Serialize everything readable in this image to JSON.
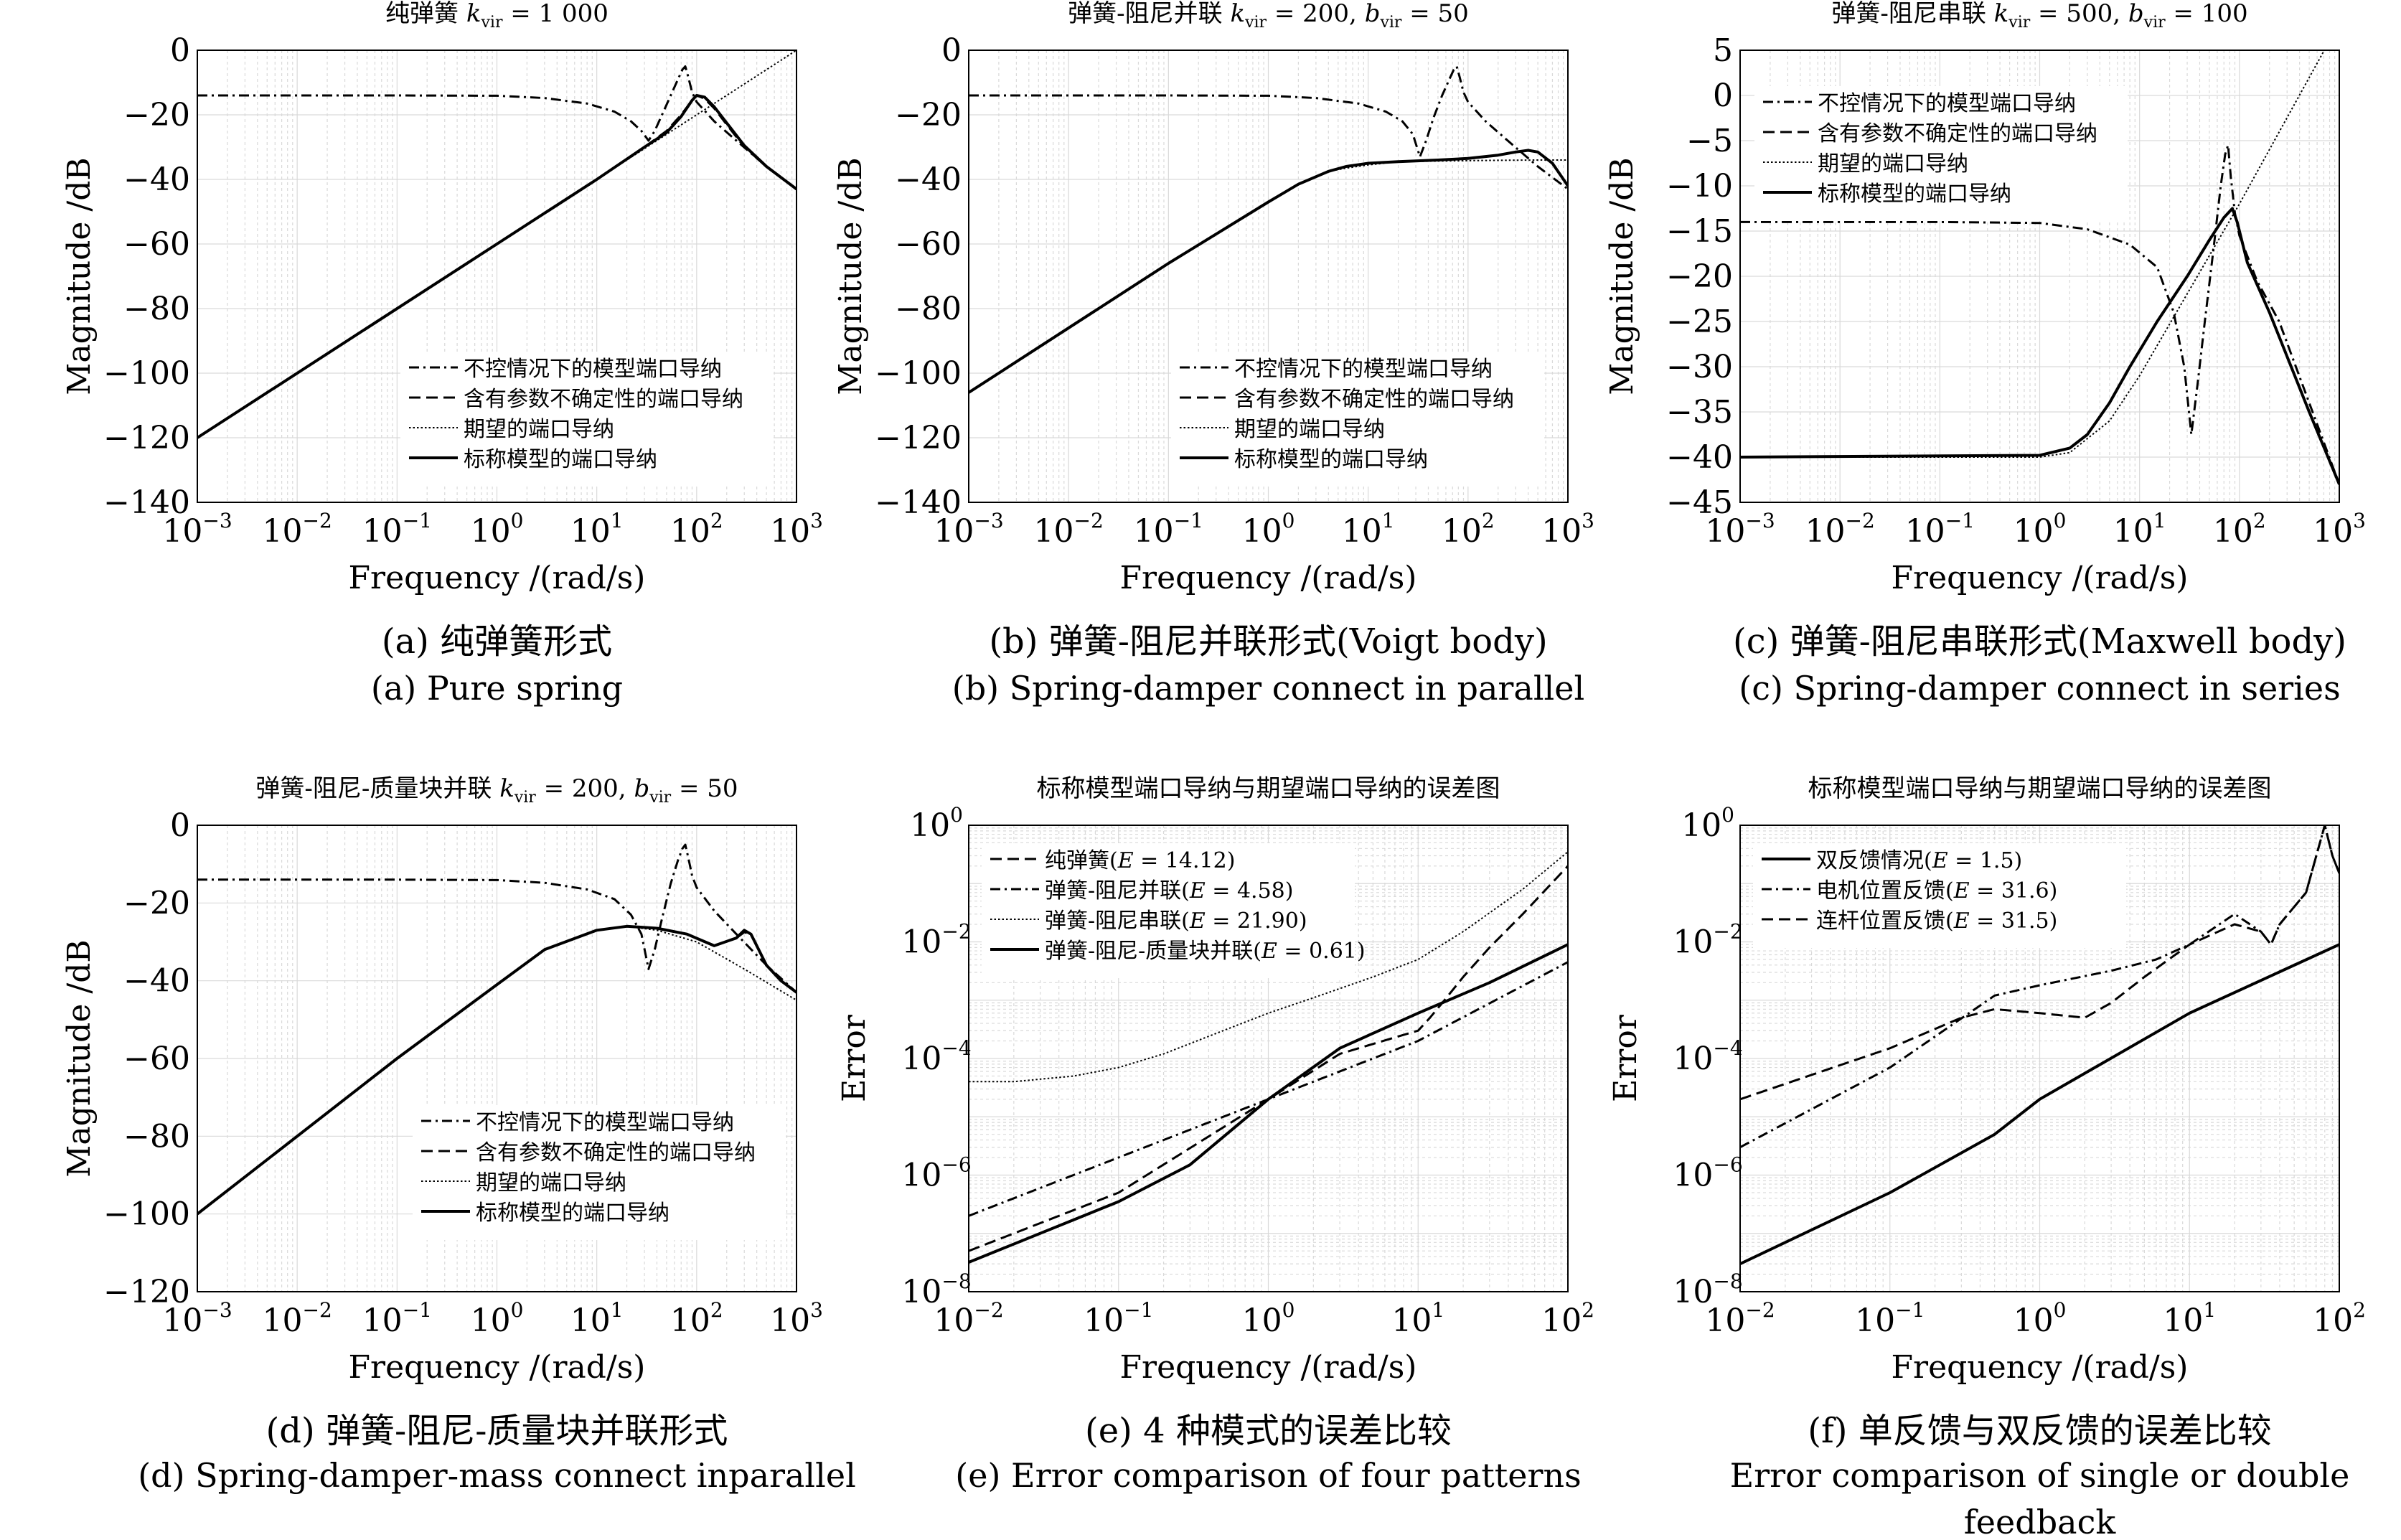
{
  "legend_labels": {
    "uncontrolled": "不控情况下的模型端口导纳",
    "uncertain": "含有参数不确定性的端口导纳",
    "desired": "期望的端口导纳",
    "nominal": "标称模型的端口导纳"
  },
  "style": {
    "line_color": "#000000",
    "grid_color": "#d9d9d9",
    "background": "#ffffff"
  },
  "chart_data": [
    {
      "id": "a",
      "type": "line",
      "title": "纯弹簧 k_vir = 1 000",
      "title_parts": [
        "纯弹簧 ",
        "k",
        "vir",
        " = 1 000"
      ],
      "xlabel": "Frequency /(rad/s)",
      "ylabel": "Magnitude /dB",
      "xscale": "log",
      "xlim": [
        0.001,
        1000
      ],
      "ylim": [
        -140,
        0
      ],
      "yticks": [
        0,
        -20,
        -40,
        -60,
        -80,
        -100,
        -120,
        -140
      ],
      "xticks": [
        -3,
        -2,
        -1,
        0,
        1,
        2,
        3
      ],
      "grid": true,
      "legend_placement": "lower-right",
      "caption_cn": "(a) 纯弹簧形式",
      "caption_en": "(a) Pure spring",
      "series": [
        {
          "name": "不控情况下的模型端口导纳",
          "style": "dashdot",
          "x": [
            0.001,
            0.1,
            1,
            3,
            8,
            15,
            22,
            28,
            33,
            38,
            45,
            55,
            65,
            72,
            77,
            82,
            90,
            100,
            150,
            250,
            500,
            1000
          ],
          "y": [
            -14,
            -14,
            -14.1,
            -14.8,
            -16.5,
            -19,
            -22,
            -25,
            -28,
            -25,
            -20,
            -14,
            -9,
            -6,
            -5,
            -8,
            -13,
            -16,
            -22,
            -28,
            -36,
            -43
          ]
        },
        {
          "name": "含有参数不确定性的端口导纳",
          "style": "dashed",
          "x": [
            0.001,
            1,
            10,
            30,
            50,
            70,
            90,
            100,
            120,
            150,
            200,
            300,
            500,
            1000
          ],
          "y": [
            -120,
            -60,
            -40,
            -30,
            -25,
            -20,
            -15.5,
            -14,
            -15,
            -18,
            -23,
            -30,
            -36,
            -43
          ]
        },
        {
          "name": "期望的端口导纳",
          "style": "dotted",
          "x": [
            0.001,
            1000
          ],
          "y": [
            -120,
            0
          ]
        },
        {
          "name": "标称模型的端口导纳",
          "style": "solid",
          "x": [
            0.001,
            1,
            10,
            30,
            50,
            70,
            90,
            100,
            120,
            150,
            200,
            300,
            500,
            1000
          ],
          "y": [
            -120,
            -60,
            -40,
            -30,
            -25.5,
            -20.5,
            -15.5,
            -14,
            -14.5,
            -17.5,
            -22.5,
            -29.5,
            -36,
            -43
          ]
        }
      ]
    },
    {
      "id": "b",
      "type": "line",
      "title": "弹簧-阻尼并联 k_vir = 200, b_vir = 50",
      "title_parts": [
        "弹簧-阻尼并联 ",
        "k",
        "vir",
        " = 200, ",
        "b",
        "vir",
        " = 50"
      ],
      "xlabel": "Frequency /(rad/s)",
      "ylabel": "Magnitude /dB",
      "xscale": "log",
      "xlim": [
        0.001,
        1000
      ],
      "ylim": [
        -140,
        0
      ],
      "yticks": [
        0,
        -20,
        -40,
        -60,
        -80,
        -100,
        -120,
        -140
      ],
      "xticks": [
        -3,
        -2,
        -1,
        0,
        1,
        2,
        3
      ],
      "grid": true,
      "legend_placement": "lower-right",
      "caption_cn": "(b) 弹簧-阻尼并联形式(Voigt body)",
      "caption_en": "(b) Spring-damper connect in parallel",
      "series": [
        {
          "name": "不控情况下的模型端口导纳",
          "style": "dashdot",
          "x": [
            0.001,
            0.1,
            1,
            3,
            8,
            15,
            22,
            28,
            33,
            38,
            45,
            55,
            65,
            72,
            77,
            82,
            90,
            100,
            150,
            250,
            500,
            1000
          ],
          "y": [
            -14,
            -14,
            -14.1,
            -14.8,
            -16.5,
            -19,
            -22,
            -26,
            -33,
            -28,
            -21,
            -14,
            -9,
            -6,
            -5,
            -8,
            -13,
            -16,
            -22,
            -28,
            -36,
            -43
          ]
        },
        {
          "name": "含有参数不确定性的端口导纳",
          "style": "dashed",
          "x": [
            0.001,
            0.1,
            1,
            2,
            4,
            6,
            10,
            20,
            50,
            100,
            200,
            300,
            400,
            500,
            700,
            1000
          ],
          "y": [
            -106,
            -66,
            -47,
            -41.5,
            -37.5,
            -36,
            -35,
            -34.5,
            -34,
            -33.5,
            -32.5,
            -31.5,
            -31,
            -31.5,
            -35,
            -42
          ]
        },
        {
          "name": "期望的端口导纳",
          "style": "dotted",
          "x": [
            0.001,
            0.1,
            1,
            2,
            4,
            6,
            10,
            20,
            50,
            100,
            200,
            500,
            1000
          ],
          "y": [
            -106,
            -66,
            -47,
            -41.5,
            -37.5,
            -36.5,
            -35.5,
            -34.5,
            -34.3,
            -34.2,
            -34.1,
            -34,
            -34
          ]
        },
        {
          "name": "标称模型的端口导纳",
          "style": "solid",
          "x": [
            0.001,
            0.1,
            1,
            2,
            4,
            6,
            10,
            20,
            50,
            100,
            200,
            300,
            400,
            500,
            700,
            1000
          ],
          "y": [
            -106,
            -66,
            -47,
            -41.5,
            -37.5,
            -36,
            -35,
            -34.5,
            -34,
            -33.5,
            -32.5,
            -31.5,
            -31,
            -31.5,
            -35,
            -42
          ]
        }
      ]
    },
    {
      "id": "c",
      "type": "line",
      "title": "弹簧-阻尼串联 k_vir = 500, b_vir = 100",
      "title_parts": [
        "弹簧-阻尼串联 ",
        "k",
        "vir",
        " = 500, ",
        "b",
        "vir",
        " = 100"
      ],
      "xlabel": "Frequency /(rad/s)",
      "ylabel": "Magnitude /dB",
      "xscale": "log",
      "xlim": [
        0.001,
        1000
      ],
      "ylim": [
        -45,
        5
      ],
      "yticks": [
        5,
        0,
        -5,
        -10,
        -15,
        -20,
        -25,
        -30,
        -35,
        -40,
        -45
      ],
      "xticks": [
        -3,
        -2,
        -1,
        0,
        1,
        2,
        3
      ],
      "grid": true,
      "legend_placement": "upper-left",
      "caption_cn": "(c) 弹簧-阻尼串联形式(Maxwell body)",
      "caption_en": "(c) Spring-damper connect in series",
      "series": [
        {
          "name": "不控情况下的模型端口导纳",
          "style": "dashdot",
          "x": [
            0.001,
            0.1,
            1,
            3,
            8,
            15,
            22,
            28,
            33,
            38,
            45,
            55,
            65,
            72,
            77,
            82,
            90,
            100,
            150,
            250,
            500,
            1000
          ],
          "y": [
            -14,
            -14,
            -14.1,
            -14.8,
            -16.5,
            -19,
            -24,
            -30,
            -37.5,
            -32,
            -25,
            -17,
            -10,
            -6.5,
            -5.5,
            -9,
            -13,
            -15.5,
            -20.5,
            -25,
            -34,
            -43
          ]
        },
        {
          "name": "含有参数不确定性的端口导纳",
          "style": "dashed",
          "x": [
            0.001,
            1,
            2,
            3,
            5,
            8,
            15,
            30,
            50,
            70,
            85,
            95,
            120,
            200,
            500,
            1000
          ],
          "y": [
            -40,
            -39.8,
            -39,
            -37.5,
            -34,
            -30,
            -25,
            -20,
            -16,
            -13.5,
            -12.5,
            -14,
            -18.5,
            -24,
            -35,
            -43
          ]
        },
        {
          "name": "期望的端口导纳",
          "style": "dotted",
          "x": [
            0.001,
            1,
            2,
            5,
            10,
            100,
            1000
          ],
          "y": [
            -40,
            -40,
            -39.5,
            -36,
            -31,
            -12,
            8
          ]
        },
        {
          "name": "标称模型的端口导纳",
          "style": "solid",
          "x": [
            0.001,
            1,
            2,
            3,
            5,
            8,
            15,
            30,
            50,
            70,
            85,
            95,
            120,
            200,
            500,
            1000
          ],
          "y": [
            -40,
            -39.8,
            -39,
            -37.5,
            -34,
            -30,
            -25,
            -20,
            -16,
            -13.5,
            -12.5,
            -14,
            -18.5,
            -24,
            -35,
            -43
          ]
        }
      ]
    },
    {
      "id": "d",
      "type": "line",
      "title": "弹簧-阻尼-质量块并联 k_vir = 200, b_vir = 50",
      "title_parts": [
        "弹簧-阻尼-质量块并联 ",
        "k",
        "vir",
        " = 200, ",
        "b",
        "vir",
        " = 50"
      ],
      "xlabel": "Frequency /(rad/s)",
      "ylabel": "Magnitude /dB",
      "xscale": "log",
      "xlim": [
        0.001,
        1000
      ],
      "ylim": [
        -120,
        0
      ],
      "yticks": [
        0,
        -20,
        -40,
        -60,
        -80,
        -100,
        -120
      ],
      "xticks": [
        -3,
        -2,
        -1,
        0,
        1,
        2,
        3
      ],
      "grid": true,
      "legend_placement": "lower-right",
      "caption_cn": "(d) 弹簧-阻尼-质量块并联形式",
      "caption_en": "(d) Spring-damper-mass connect inparallel",
      "series": [
        {
          "name": "不控情况下的模型端口导纳",
          "style": "dashdot",
          "x": [
            0.001,
            0.1,
            1,
            3,
            8,
            15,
            22,
            28,
            33,
            38,
            45,
            55,
            65,
            72,
            77,
            82,
            90,
            100,
            150,
            250,
            500,
            1000
          ],
          "y": [
            -14,
            -14,
            -14.1,
            -14.8,
            -16.5,
            -19,
            -23,
            -28,
            -37,
            -32,
            -24,
            -15,
            -9,
            -6,
            -5,
            -8,
            -13,
            -16,
            -22,
            -28,
            -36,
            -43
          ]
        },
        {
          "name": "含有参数不确定性的端口导纳",
          "style": "dashed",
          "x": [
            0.001,
            0.1,
            1,
            3,
            10,
            20,
            40,
            80,
            150,
            250,
            300,
            350,
            400,
            500,
            700,
            1000
          ],
          "y": [
            -100,
            -60,
            -41,
            -32,
            -27,
            -26,
            -26.5,
            -28,
            -31,
            -29,
            -27.5,
            -28,
            -31,
            -36,
            -40,
            -43
          ]
        },
        {
          "name": "期望的端口导纳",
          "style": "dotted",
          "x": [
            0.001,
            0.1,
            1,
            3,
            10,
            20,
            40,
            100,
            300,
            1000
          ],
          "y": [
            -100,
            -60,
            -41,
            -32,
            -27,
            -26,
            -27,
            -30,
            -37,
            -45
          ]
        },
        {
          "name": "标称模型的端口导纳",
          "style": "solid",
          "x": [
            0.001,
            0.1,
            1,
            3,
            10,
            20,
            40,
            80,
            150,
            250,
            300,
            350,
            400,
            500,
            700,
            1000
          ],
          "y": [
            -100,
            -60,
            -41,
            -32,
            -27,
            -26,
            -26.5,
            -28,
            -31,
            -29,
            -27,
            -28,
            -31,
            -36,
            -40,
            -43
          ]
        }
      ]
    },
    {
      "id": "e",
      "type": "line",
      "title": "标称模型端口导纳与期望端口导纳的误差图",
      "title_parts": [
        "标称模型端口导纳与期望端口导纳的误差图"
      ],
      "xlabel": "Frequency /(rad/s)",
      "ylabel": "Error",
      "xscale": "log",
      "yscale": "log",
      "xlim": [
        0.01,
        100
      ],
      "ylim": [
        1e-08,
        1
      ],
      "xticks": [
        -2,
        -1,
        0,
        1,
        2
      ],
      "yticks": [
        -8,
        -6,
        -4,
        -2,
        0
      ],
      "grid": true,
      "legend_placement": "upper-left",
      "caption_cn": "(e) 4 种模式的误差比较",
      "caption_en": "(e) Error comparison of four patterns",
      "series": [
        {
          "name": "纯弹簧(E = 14.12)",
          "label_base": "纯弹簧",
          "E": "14.12",
          "style": "dashed",
          "x": [
            0.01,
            0.1,
            1,
            3,
            7,
            10,
            12,
            15,
            20,
            30,
            50,
            100
          ],
          "y": [
            5e-08,
            5e-07,
            2e-05,
            0.00012,
            0.00023,
            0.0003,
            0.0005,
            0.001,
            0.0025,
            0.008,
            0.03,
            0.2
          ]
        },
        {
          "name": "弹簧-阻尼并联(E = 4.58)",
          "label_base": "弹簧-阻尼并联",
          "E": "4.58",
          "style": "dashdot",
          "x": [
            0.01,
            0.1,
            1,
            10,
            100
          ],
          "y": [
            2e-07,
            2e-06,
            2e-05,
            0.0002,
            0.0045
          ]
        },
        {
          "name": "弹簧-阻尼串联(E = 21.90)",
          "label_base": "弹簧-阻尼串联",
          "E": "21.90",
          "style": "dotted",
          "x": [
            0.01,
            0.02,
            0.05,
            0.1,
            0.2,
            0.5,
            1,
            2,
            5,
            10,
            20,
            50,
            100
          ],
          "y": [
            4e-05,
            4e-05,
            5e-05,
            7e-05,
            0.00012,
            0.0003,
            0.0006,
            0.0011,
            0.0025,
            0.005,
            0.015,
            0.08,
            0.35
          ]
        },
        {
          "name": "弹簧-阻尼-质量块并联(E = 0.61)",
          "label_base": "弹簧-阻尼-质量块并联",
          "E": "0.61",
          "style": "solid",
          "x": [
            0.01,
            0.1,
            0.3,
            1,
            3,
            10,
            30,
            100
          ],
          "y": [
            3.2e-08,
            3.5e-07,
            1.5e-06,
            2e-05,
            0.00015,
            0.0006,
            0.002,
            0.009
          ]
        }
      ]
    },
    {
      "id": "f",
      "type": "line",
      "title": "标称模型端口导纳与期望端口导纳的误差图",
      "title_parts": [
        "标称模型端口导纳与期望端口导纳的误差图"
      ],
      "xlabel": "Frequency /(rad/s)",
      "ylabel": "Error",
      "xscale": "log",
      "yscale": "log",
      "xlim": [
        0.01,
        100
      ],
      "ylim": [
        1e-08,
        1
      ],
      "xticks": [
        -2,
        -1,
        0,
        1,
        2
      ],
      "yticks": [
        -8,
        -6,
        -4,
        -2,
        0
      ],
      "grid": true,
      "legend_placement": "upper-left",
      "caption_cn": "(f) 单反馈与双反馈的误差比较",
      "caption_en": "(f) Error comparison of single or double feedback",
      "series": [
        {
          "name": "双反馈情况(E = 1.5)",
          "label_base": "双反馈情况",
          "E": "1.5",
          "style": "solid",
          "x": [
            0.01,
            0.1,
            0.5,
            1,
            10,
            100
          ],
          "y": [
            3e-08,
            5e-07,
            5e-06,
            2e-05,
            0.0006,
            0.009
          ]
        },
        {
          "name": "电机位置反馈(E = 31.6)",
          "label_base": "电机位置反馈",
          "E": "31.6",
          "style": "dashdot",
          "x": [
            0.01,
            0.1,
            0.5,
            1,
            3,
            6,
            10,
            20,
            30,
            35,
            40,
            60,
            80,
            90,
            100
          ],
          "y": [
            3e-06,
            7e-05,
            0.0012,
            0.0018,
            0.0032,
            0.005,
            0.009,
            0.03,
            0.015,
            0.009,
            0.02,
            0.07,
            1,
            0.3,
            0.15
          ]
        },
        {
          "name": "连杆位置反馈(E = 31.5)",
          "label_base": "连杆位置反馈",
          "E": "31.5",
          "style": "dashed",
          "x": [
            0.01,
            0.1,
            0.3,
            0.5,
            1,
            2,
            3,
            5,
            10,
            20,
            30,
            35,
            40,
            60,
            80,
            90,
            100
          ],
          "y": [
            2e-05,
            0.00015,
            0.0005,
            0.0007,
            0.0006,
            0.0005,
            0.0009,
            0.0025,
            0.009,
            0.02,
            0.015,
            0.009,
            0.02,
            0.07,
            1,
            0.3,
            0.15
          ]
        }
      ]
    }
  ]
}
